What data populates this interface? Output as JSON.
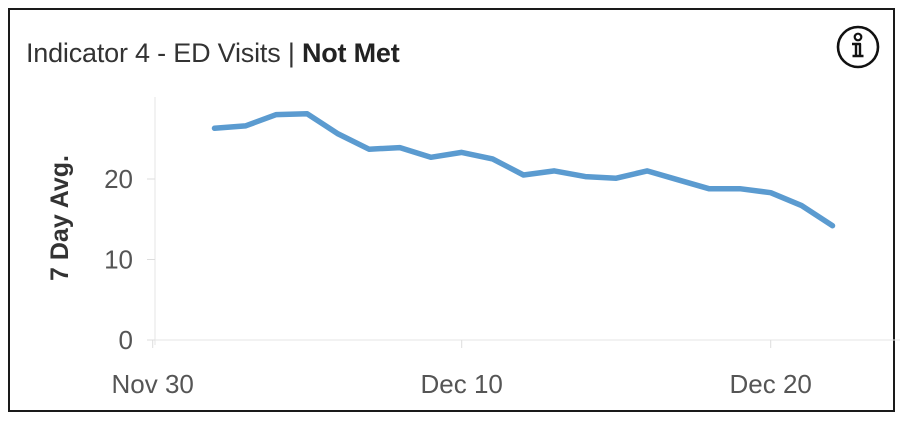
{
  "header": {
    "title": "Indicator 4 - ED Visits",
    "separator": "|",
    "status": "Not Met"
  },
  "info_button": {
    "icon": "info-icon"
  },
  "colors": {
    "line": "#5b9bd0",
    "text": "#555555",
    "grid": "#e6e6e6"
  },
  "chart_data": {
    "type": "line",
    "title": "Indicator 4 - ED Visits | Not Met",
    "xlabel": "",
    "ylabel": "7 Day Avg.",
    "x_tick_labels": [
      "Nov 30",
      "Dec 10",
      "Dec 20"
    ],
    "y_tick_labels": [
      "0",
      "10",
      "20"
    ],
    "ylim": [
      0,
      30
    ],
    "grid": false,
    "series": [
      {
        "x": [
          "Dec 2",
          "Dec 3",
          "Dec 4",
          "Dec 5",
          "Dec 6",
          "Dec 7",
          "Dec 8",
          "Dec 9",
          "Dec 10",
          "Dec 11",
          "Dec 12",
          "Dec 13",
          "Dec 14",
          "Dec 15",
          "Dec 16",
          "Dec 17",
          "Dec 18",
          "Dec 19",
          "Dec 20",
          "Dec 21",
          "Dec 22"
        ],
        "values": [
          26.3,
          26.6,
          28.0,
          28.1,
          25.6,
          23.7,
          23.9,
          22.7,
          23.3,
          22.5,
          20.5,
          21.0,
          20.3,
          20.1,
          21.0,
          19.9,
          18.8,
          18.8,
          18.3,
          16.7,
          14.2
        ]
      }
    ]
  }
}
